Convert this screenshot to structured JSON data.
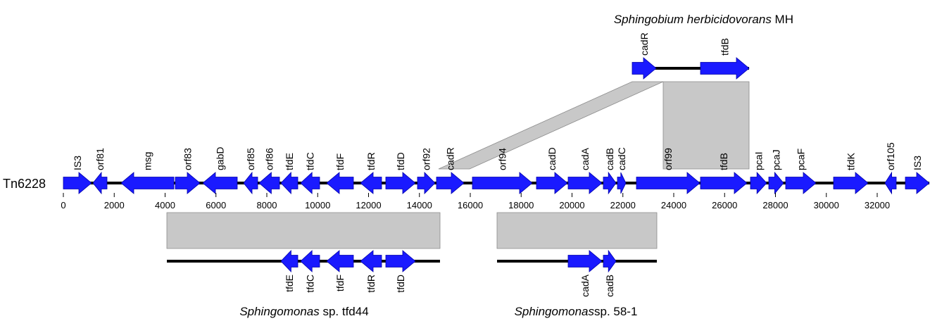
{
  "colors": {
    "gene": "#1a1aff",
    "gene_stroke": "#0000a8",
    "backbone": "#000000",
    "homology": "#c8c8c8",
    "homology_stroke": "#8a8a8a"
  },
  "main": {
    "name": "Tn6228",
    "ticks": [
      "0",
      "2000",
      "4000",
      "6000",
      "8000",
      "10000",
      "12000",
      "14000",
      "16000",
      "18000",
      "20000",
      "22000",
      "24000",
      "26000",
      "28000",
      "30000",
      "32000"
    ],
    "genes": [
      "IS3",
      "orf81",
      "msg",
      "orf83",
      "gabD",
      "orf85",
      "orf86",
      "tfdE",
      "tfdC",
      "tfdF",
      "tfdR",
      "tfdD",
      "orf92",
      "cadR",
      "orf94",
      "cadD",
      "cadA",
      "cadB",
      "cadC",
      "orf99",
      "tfdB",
      "pcaI",
      "pcaJ",
      "pcaF",
      "tfdK",
      "orf105",
      "IS3"
    ]
  },
  "top": {
    "organism_italic": "Sphingobium herbicidovorans",
    "organism_suffix": " MH",
    "genes": [
      "cadR",
      "tfdB"
    ]
  },
  "bottom_left": {
    "organism_italic": "Sphingomonas",
    "organism_suffix": " sp. tfd44",
    "genes": [
      "tfdE",
      "tfdC",
      "tfdF",
      "tfdR",
      "tfdD"
    ]
  },
  "bottom_right": {
    "organism_italic": "Sphingomonas",
    "organism_suffix": "sp. 58-1",
    "genes": [
      "cadA",
      "cadB"
    ]
  }
}
